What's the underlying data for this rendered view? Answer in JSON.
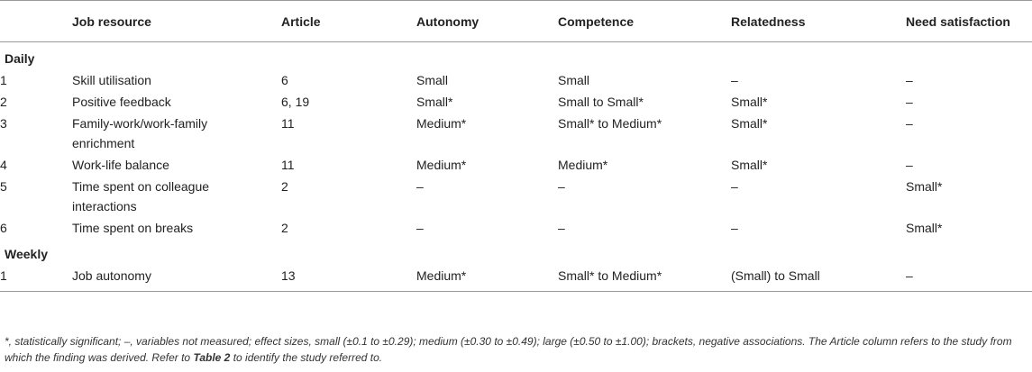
{
  "table": {
    "headers": {
      "num": "",
      "resource": "Job resource",
      "article": "Article",
      "autonomy": "Autonomy",
      "competence": "Competence",
      "relatedness": "Relatedness",
      "need": "Need satisfaction"
    },
    "sections": [
      {
        "label": "Daily",
        "rows": [
          {
            "num": "1",
            "resource": "Skill utilisation",
            "article": "6",
            "autonomy": "Small",
            "competence": "Small",
            "relatedness": "–",
            "need": "–"
          },
          {
            "num": "2",
            "resource": "Positive feedback",
            "article": "6, 19",
            "autonomy": "Small*",
            "competence": "Small to Small*",
            "relatedness": "Small*",
            "need": "–"
          },
          {
            "num": "3",
            "resource": "Family-work/work-family enrichment",
            "article": "11",
            "autonomy": "Medium*",
            "competence": "Small* to Medium*",
            "relatedness": "Small*",
            "need": "–"
          },
          {
            "num": "4",
            "resource": "Work-life balance",
            "article": "11",
            "autonomy": "Medium*",
            "competence": "Medium*",
            "relatedness": "Small*",
            "need": "–"
          },
          {
            "num": "5",
            "resource": "Time spent on colleague interactions",
            "article": "2",
            "autonomy": "–",
            "competence": "–",
            "relatedness": "–",
            "need": "Small*"
          },
          {
            "num": "6",
            "resource": "Time spent on breaks",
            "article": "2",
            "autonomy": "–",
            "competence": "–",
            "relatedness": "–",
            "need": "Small*"
          }
        ]
      },
      {
        "label": "Weekly",
        "rows": [
          {
            "num": "1",
            "resource": "Job autonomy",
            "article": "13",
            "autonomy": "Medium*",
            "competence": "Small* to Medium*",
            "relatedness": "(Small) to Small",
            "need": "–"
          }
        ]
      }
    ]
  },
  "footnote": {
    "text_before": "*, statistically significant; –, variables not measured; effect sizes, small (±0.1 to ±0.29); medium (±0.30 to ±0.49); large (±0.50 to ±1.00); brackets, negative associations. The Article column refers to the study from which the finding was derived. Refer to ",
    "bold_ref": "Table 2",
    "text_after": " to identify the study referred to."
  }
}
